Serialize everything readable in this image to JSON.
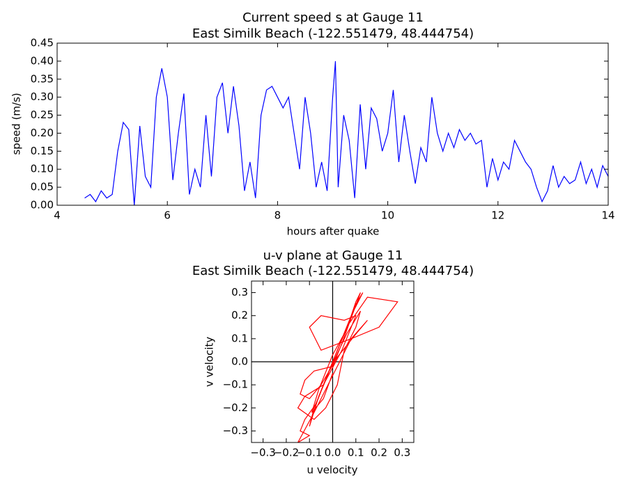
{
  "chart_data": [
    {
      "type": "line",
      "title": "Current speed s at Gauge 11",
      "subtitle": "East Similk Beach  (-122.551479, 48.444754)",
      "xlabel": "hours after quake",
      "ylabel": "speed (m/s)",
      "color": "#0000ff",
      "x": [
        4.5,
        4.6,
        4.7,
        4.8,
        4.9,
        5.0,
        5.1,
        5.2,
        5.3,
        5.4,
        5.5,
        5.6,
        5.7,
        5.8,
        5.9,
        6.0,
        6.1,
        6.2,
        6.3,
        6.4,
        6.5,
        6.6,
        6.7,
        6.8,
        6.9,
        7.0,
        7.1,
        7.2,
        7.3,
        7.4,
        7.5,
        7.6,
        7.7,
        7.8,
        7.9,
        8.0,
        8.1,
        8.2,
        8.3,
        8.4,
        8.5,
        8.6,
        8.7,
        8.8,
        8.9,
        9.0,
        9.05,
        9.1,
        9.2,
        9.3,
        9.4,
        9.5,
        9.6,
        9.7,
        9.8,
        9.9,
        10.0,
        10.1,
        10.2,
        10.3,
        10.4,
        10.5,
        10.6,
        10.7,
        10.8,
        10.9,
        11.0,
        11.1,
        11.2,
        11.3,
        11.4,
        11.5,
        11.6,
        11.7,
        11.8,
        11.9,
        12.0,
        12.1,
        12.2,
        12.3,
        12.4,
        12.5,
        12.6,
        12.7,
        12.8,
        12.9,
        13.0,
        13.1,
        13.2,
        13.3,
        13.4,
        13.5,
        13.6,
        13.7,
        13.8,
        13.9,
        14.0
      ],
      "values": [
        0.02,
        0.03,
        0.01,
        0.04,
        0.02,
        0.03,
        0.15,
        0.23,
        0.21,
        0.0,
        0.22,
        0.08,
        0.05,
        0.3,
        0.38,
        0.3,
        0.07,
        0.2,
        0.31,
        0.03,
        0.1,
        0.05,
        0.25,
        0.08,
        0.3,
        0.34,
        0.2,
        0.33,
        0.22,
        0.04,
        0.12,
        0.02,
        0.25,
        0.32,
        0.33,
        0.3,
        0.27,
        0.3,
        0.2,
        0.1,
        0.3,
        0.2,
        0.05,
        0.12,
        0.04,
        0.3,
        0.4,
        0.05,
        0.25,
        0.18,
        0.02,
        0.28,
        0.1,
        0.27,
        0.24,
        0.15,
        0.2,
        0.32,
        0.12,
        0.25,
        0.15,
        0.06,
        0.16,
        0.12,
        0.3,
        0.2,
        0.15,
        0.2,
        0.16,
        0.21,
        0.18,
        0.2,
        0.17,
        0.18,
        0.05,
        0.13,
        0.07,
        0.12,
        0.1,
        0.18,
        0.15,
        0.12,
        0.1,
        0.05,
        0.01,
        0.04,
        0.11,
        0.05,
        0.08,
        0.06,
        0.07,
        0.12,
        0.06,
        0.1,
        0.05,
        0.11,
        0.08
      ],
      "xlim": [
        4,
        14
      ],
      "xticks": [
        4,
        6,
        8,
        10,
        12,
        14
      ],
      "ylim": [
        0,
        0.45
      ],
      "yticks": [
        {
          "value": 0,
          "label": "0.00"
        },
        {
          "value": 0.05,
          "label": "0.05"
        },
        {
          "value": 0.1,
          "label": "0.10"
        },
        {
          "value": 0.15,
          "label": "0.15"
        },
        {
          "value": 0.2,
          "label": "0.20"
        },
        {
          "value": 0.25,
          "label": "0.25"
        },
        {
          "value": 0.3,
          "label": "0.30"
        },
        {
          "value": 0.35,
          "label": "0.35"
        },
        {
          "value": 0.4,
          "label": "0.40"
        },
        {
          "value": 0.45,
          "label": "0.45"
        }
      ]
    },
    {
      "type": "line",
      "title": "u-v plane at Gauge 11",
      "subtitle": "East Similk Beach  (-122.551479, 48.444754)",
      "xlabel": "u velocity",
      "ylabel": "v velocity",
      "color": "#ff0000",
      "zero_lines": true,
      "x": [
        0,
        0.05,
        0.1,
        0.13,
        0.08,
        0.02,
        -0.03,
        -0.08,
        -0.1,
        -0.06,
        0.0,
        0.06,
        0.15,
        0.28,
        0.2,
        0.08,
        -0.05,
        -0.1,
        -0.05,
        0.05,
        0.1,
        0.04,
        -0.04,
        -0.12,
        -0.15,
        -0.08,
        -0.03,
        0.02,
        0.05,
        0.1,
        0.12,
        0.06,
        -0.02,
        -0.07,
        -0.12,
        -0.14,
        -0.1,
        -0.15,
        -0.08,
        -0.03,
        0.03,
        0.08,
        0.15,
        0.1,
        0.02,
        -0.05,
        -0.1,
        -0.14,
        -0.12,
        -0.08,
        0.0,
        0.04,
        0.12,
        0.1,
        0.06,
        0.0,
        -0.06,
        -0.09,
        -0.04,
        0.0
      ],
      "values": [
        0,
        0.12,
        0.25,
        0.3,
        0.2,
        0.05,
        -0.08,
        -0.2,
        -0.28,
        -0.15,
        0.0,
        0.15,
        0.28,
        0.26,
        0.15,
        0.1,
        0.05,
        0.15,
        0.2,
        0.18,
        0.2,
        0.05,
        -0.1,
        -0.15,
        -0.2,
        -0.25,
        -0.2,
        -0.1,
        0.05,
        0.15,
        0.22,
        0.12,
        -0.05,
        -0.18,
        -0.25,
        -0.3,
        -0.32,
        -0.35,
        -0.22,
        -0.12,
        0.0,
        0.1,
        0.18,
        0.12,
        0.02,
        -0.1,
        -0.16,
        -0.14,
        -0.08,
        -0.04,
        -0.02,
        0.08,
        0.3,
        0.26,
        0.14,
        0.03,
        -0.12,
        -0.22,
        -0.16,
        -0.05
      ],
      "xlim": [
        -0.35,
        0.35
      ],
      "xticks": [
        {
          "value": -0.3,
          "label": "−0.3"
        },
        {
          "value": -0.2,
          "label": "−0.2"
        },
        {
          "value": -0.1,
          "label": "−0.1"
        },
        {
          "value": 0,
          "label": "0.0"
        },
        {
          "value": 0.1,
          "label": "0.1"
        },
        {
          "value": 0.2,
          "label": "0.2"
        },
        {
          "value": 0.3,
          "label": "0.3"
        }
      ],
      "ylim": [
        -0.35,
        0.35
      ],
      "yticks": [
        {
          "value": -0.3,
          "label": "−0.3"
        },
        {
          "value": -0.2,
          "label": "−0.2"
        },
        {
          "value": -0.1,
          "label": "−0.1"
        },
        {
          "value": 0,
          "label": "0.0"
        },
        {
          "value": 0.1,
          "label": "0.1"
        },
        {
          "value": 0.2,
          "label": "0.2"
        },
        {
          "value": 0.3,
          "label": "0.3"
        }
      ]
    }
  ]
}
